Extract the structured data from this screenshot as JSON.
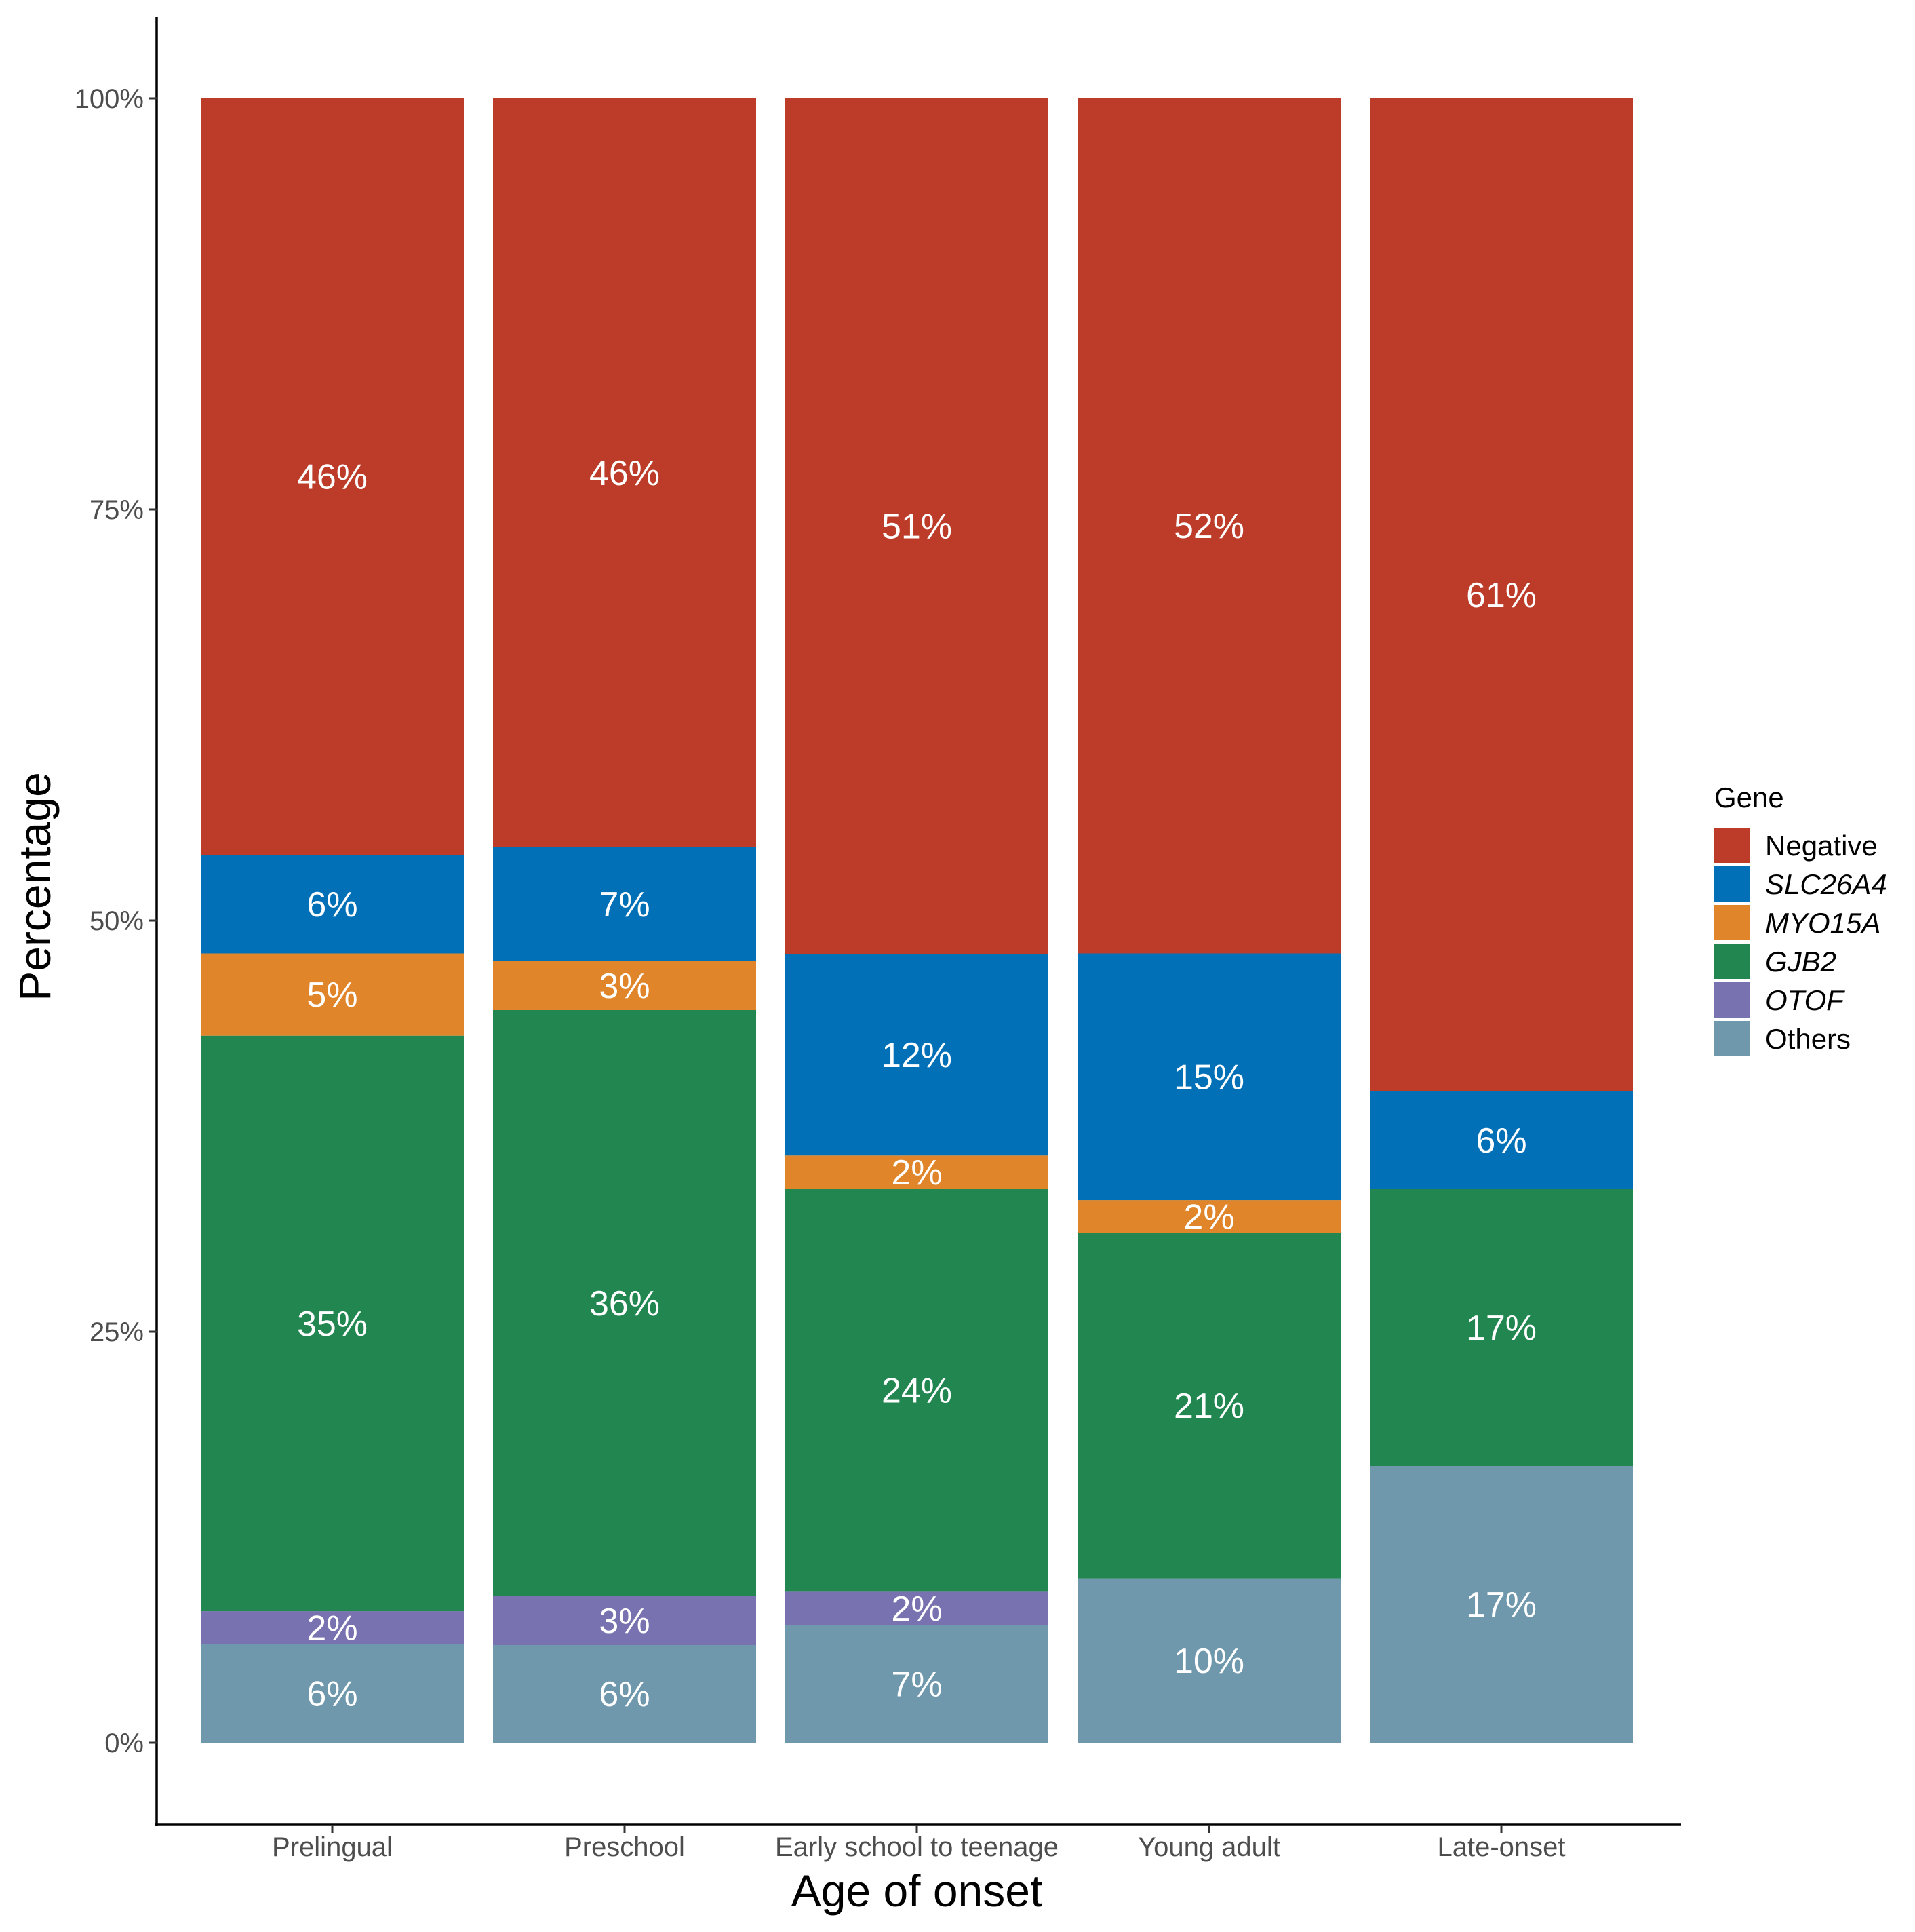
{
  "chart_data": {
    "type": "bar",
    "stacked": true,
    "xlabel": "Age of onset",
    "ylabel": "Percentage",
    "ylim": [
      0,
      100
    ],
    "yticks": [
      "0%",
      "25%",
      "50%",
      "75%",
      "100%"
    ],
    "ytick_values": [
      0,
      25,
      50,
      75,
      100
    ],
    "categories": [
      "Prelingual",
      "Preschool",
      "Early school to teenage",
      "Young adult",
      "Late-onset"
    ],
    "legend": {
      "title": "Gene",
      "position": "right"
    },
    "series": [
      {
        "name": "Others",
        "italic": false,
        "color": "#6f98ad",
        "values": [
          6,
          6,
          7,
          10,
          17
        ],
        "labels": [
          "6%",
          "6%",
          "7%",
          "10%",
          "17%"
        ]
      },
      {
        "name": "OTOF",
        "italic": true,
        "color": "#7873b0",
        "values": [
          2,
          3,
          2,
          0,
          0
        ],
        "labels": [
          "2%",
          "3%",
          "2%",
          "",
          ""
        ]
      },
      {
        "name": "GJB2",
        "italic": true,
        "color": "#218650",
        "values": [
          35,
          36,
          24,
          21,
          17
        ],
        "labels": [
          "35%",
          "36%",
          "24%",
          "21%",
          "17%"
        ]
      },
      {
        "name": "MYO15A",
        "italic": true,
        "color": "#e0852a",
        "values": [
          5,
          3,
          2,
          2,
          0
        ],
        "labels": [
          "5%",
          "3%",
          "2%",
          "2%",
          ""
        ]
      },
      {
        "name": "SLC26A4",
        "italic": true,
        "color": "#0170b6",
        "values": [
          6,
          7,
          12,
          15,
          6
        ],
        "labels": [
          "6%",
          "7%",
          "12%",
          "15%",
          "6%"
        ]
      },
      {
        "name": "Negative",
        "italic": false,
        "color": "#bc3c29",
        "values": [
          46,
          46,
          51,
          52,
          61
        ],
        "labels": [
          "46%",
          "46%",
          "51%",
          "52%",
          "61%"
        ]
      }
    ],
    "legend_order": [
      "Negative",
      "SLC26A4",
      "MYO15A",
      "GJB2",
      "OTOF",
      "Others"
    ]
  }
}
